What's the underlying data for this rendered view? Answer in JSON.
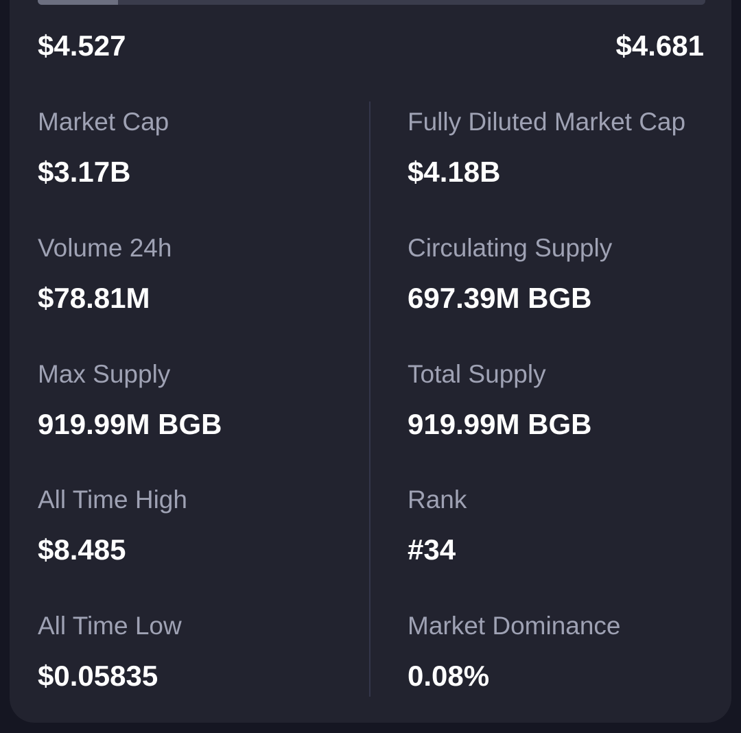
{
  "price_range": {
    "low": "$4.527",
    "high": "$4.681",
    "fill_fraction": 0.12
  },
  "stats_left": [
    {
      "label": "Market Cap",
      "value": "$3.17B"
    },
    {
      "label": "Volume 24h",
      "value": "$78.81M"
    },
    {
      "label": "Max Supply",
      "value": "919.99M BGB"
    },
    {
      "label": "All Time High",
      "value": "$8.485"
    },
    {
      "label": "All Time Low",
      "value": "$0.05835"
    }
  ],
  "stats_right": [
    {
      "label": "Fully Diluted Market Cap",
      "value": "$4.18B"
    },
    {
      "label": "Circulating Supply",
      "value": "697.39M BGB"
    },
    {
      "label": "Total Supply",
      "value": "919.99M BGB"
    },
    {
      "label": "Rank",
      "value": "#34"
    },
    {
      "label": "Market Dominance",
      "value": "0.08%"
    }
  ],
  "colors": {
    "background": "#151622",
    "card": "#22232f",
    "label": "#9fa2b4",
    "value": "#ffffff",
    "track": "#3a3c4c",
    "track_fill": "#6c6f80"
  }
}
